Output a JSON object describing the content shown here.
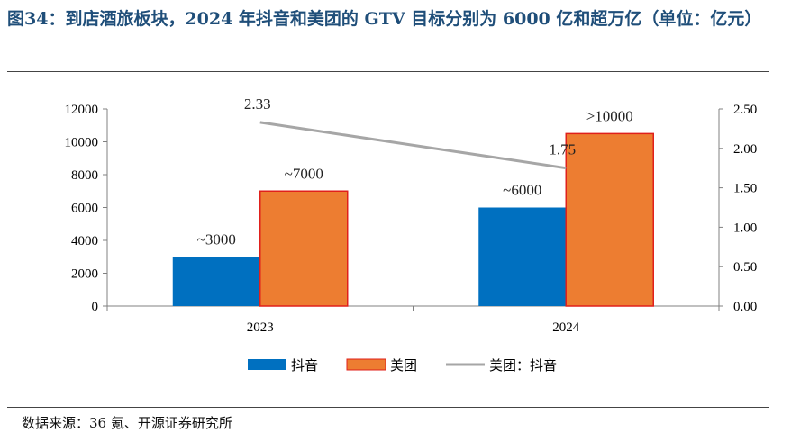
{
  "title": "图34：到店酒旅板块，2024 年抖音和美团的 GTV 目标分别为 6000 亿和超万亿（单位：亿元）",
  "source": "数据来源：36 氪、开源证券研究所",
  "chart_data": {
    "type": "bar",
    "categories": [
      "2023",
      "2024"
    ],
    "series": [
      {
        "name": "抖音",
        "kind": "bar",
        "axis": "left",
        "color": "#0070c0",
        "values": [
          3000,
          6000
        ],
        "labels": [
          "~3000",
          "~6000"
        ]
      },
      {
        "name": "美团",
        "kind": "bar",
        "axis": "left",
        "color": "#ed7d31",
        "values": [
          7000,
          10500
        ],
        "labels": [
          "~7000",
          ">10000"
        ]
      },
      {
        "name": "美团：抖音",
        "kind": "line",
        "axis": "right",
        "color": "#a6a6a6",
        "values": [
          2.33,
          1.75
        ],
        "labels": [
          "2.33",
          "1.75"
        ]
      }
    ],
    "y_left": {
      "min": 0,
      "max": 12000,
      "step": 2000,
      "ticks": [
        "0",
        "2000",
        "4000",
        "6000",
        "8000",
        "10000",
        "12000"
      ]
    },
    "y_right": {
      "min": 0,
      "max": 2.5,
      "step": 0.5,
      "ticks": [
        "0.00",
        "0.50",
        "1.00",
        "1.50",
        "2.00",
        "2.50"
      ]
    },
    "grid": false,
    "legend": "bottom"
  }
}
